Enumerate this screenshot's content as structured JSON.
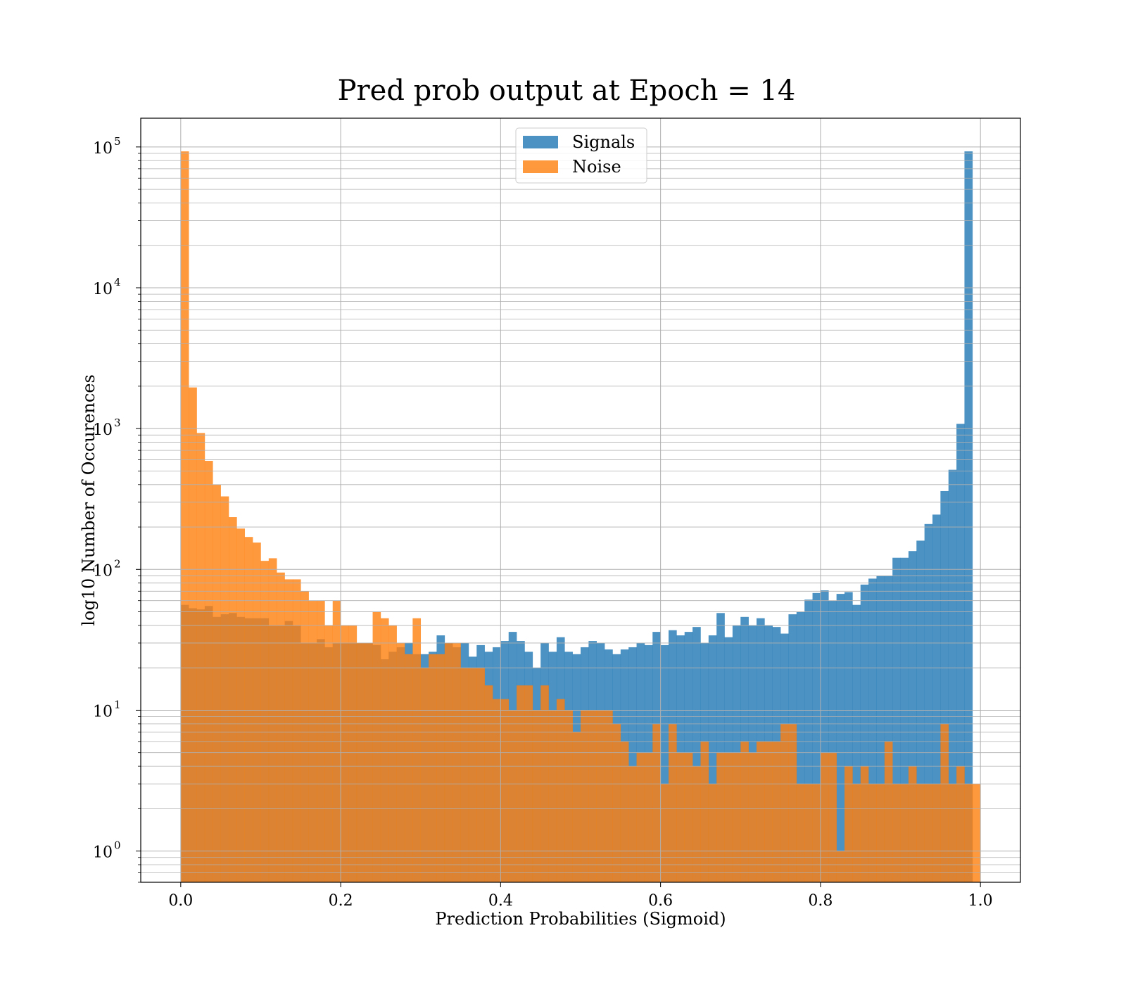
{
  "chart_data": {
    "type": "bar",
    "title": "Pred prob output at Epoch = 14",
    "xlabel": "Prediction Probabilities (Sigmoid)",
    "ylabel": "log10 Number of Occurences",
    "xlim": [
      -0.05,
      1.05
    ],
    "ylim": [
      0.6,
      160000
    ],
    "yscale": "log",
    "grid": true,
    "legend_placement": "upper-center",
    "bin_range": [
      0,
      1
    ],
    "bins": 100,
    "x_ticks": [
      {
        "value": 0.0,
        "label": "0.0"
      },
      {
        "value": 0.2,
        "label": "0.2"
      },
      {
        "value": 0.4,
        "label": "0.4"
      },
      {
        "value": 0.6,
        "label": "0.6"
      },
      {
        "value": 0.8,
        "label": "0.8"
      },
      {
        "value": 1.0,
        "label": "1.0"
      }
    ],
    "y_ticks": [
      {
        "value": 1,
        "base": "10",
        "exp": "0"
      },
      {
        "value": 10,
        "base": "10",
        "exp": "1"
      },
      {
        "value": 100,
        "base": "10",
        "exp": "2"
      },
      {
        "value": 1000,
        "base": "10",
        "exp": "3"
      },
      {
        "value": 10000,
        "base": "10",
        "exp": "4"
      },
      {
        "value": 100000,
        "base": "10",
        "exp": "5"
      }
    ],
    "series": [
      {
        "name": "Signals",
        "color": "#1f77b4",
        "values": [
          56,
          53,
          52,
          55,
          46,
          48,
          49,
          46,
          45,
          45,
          45,
          40,
          40,
          43,
          40,
          30,
          30,
          32,
          28,
          30,
          30,
          30,
          30,
          30,
          29,
          23,
          26,
          28,
          30,
          25,
          25,
          26,
          34,
          30,
          28,
          30,
          24,
          29,
          26,
          28,
          31,
          36,
          31,
          26,
          20,
          30,
          26,
          33,
          26,
          25,
          28,
          31,
          30,
          27,
          25,
          27,
          28,
          30,
          29,
          36,
          29,
          37,
          34,
          36,
          39,
          30,
          34,
          49,
          33,
          40,
          46,
          40,
          45,
          40,
          39,
          35,
          48,
          50,
          61,
          68,
          71,
          60,
          67,
          69,
          56,
          78,
          86,
          90,
          90,
          121,
          121,
          135,
          160,
          210,
          245,
          360,
          510,
          1080,
          93000,
          0
        ]
      },
      {
        "name": "Noise",
        "color": "#ff7f0e",
        "values": [
          93000,
          1960,
          930,
          590,
          400,
          330,
          235,
          195,
          170,
          155,
          115,
          120,
          95,
          85,
          85,
          70,
          60,
          60,
          40,
          60,
          40,
          40,
          30,
          30,
          50,
          45,
          40,
          30,
          25,
          45,
          20,
          25,
          25,
          30,
          30,
          20,
          20,
          20,
          15,
          12,
          12,
          10,
          15,
          15,
          10,
          15,
          10,
          12,
          10,
          7,
          10,
          10,
          10,
          10,
          8,
          6,
          4,
          5,
          5,
          8,
          3,
          8,
          5,
          5,
          4,
          6,
          3,
          5,
          5,
          5,
          6,
          5,
          6,
          6,
          6,
          8,
          8,
          3,
          3,
          3,
          5,
          5,
          1,
          4,
          3,
          4,
          3,
          3,
          6,
          3,
          3,
          4,
          3,
          3,
          3,
          8,
          3,
          4,
          3,
          3
        ]
      }
    ]
  }
}
